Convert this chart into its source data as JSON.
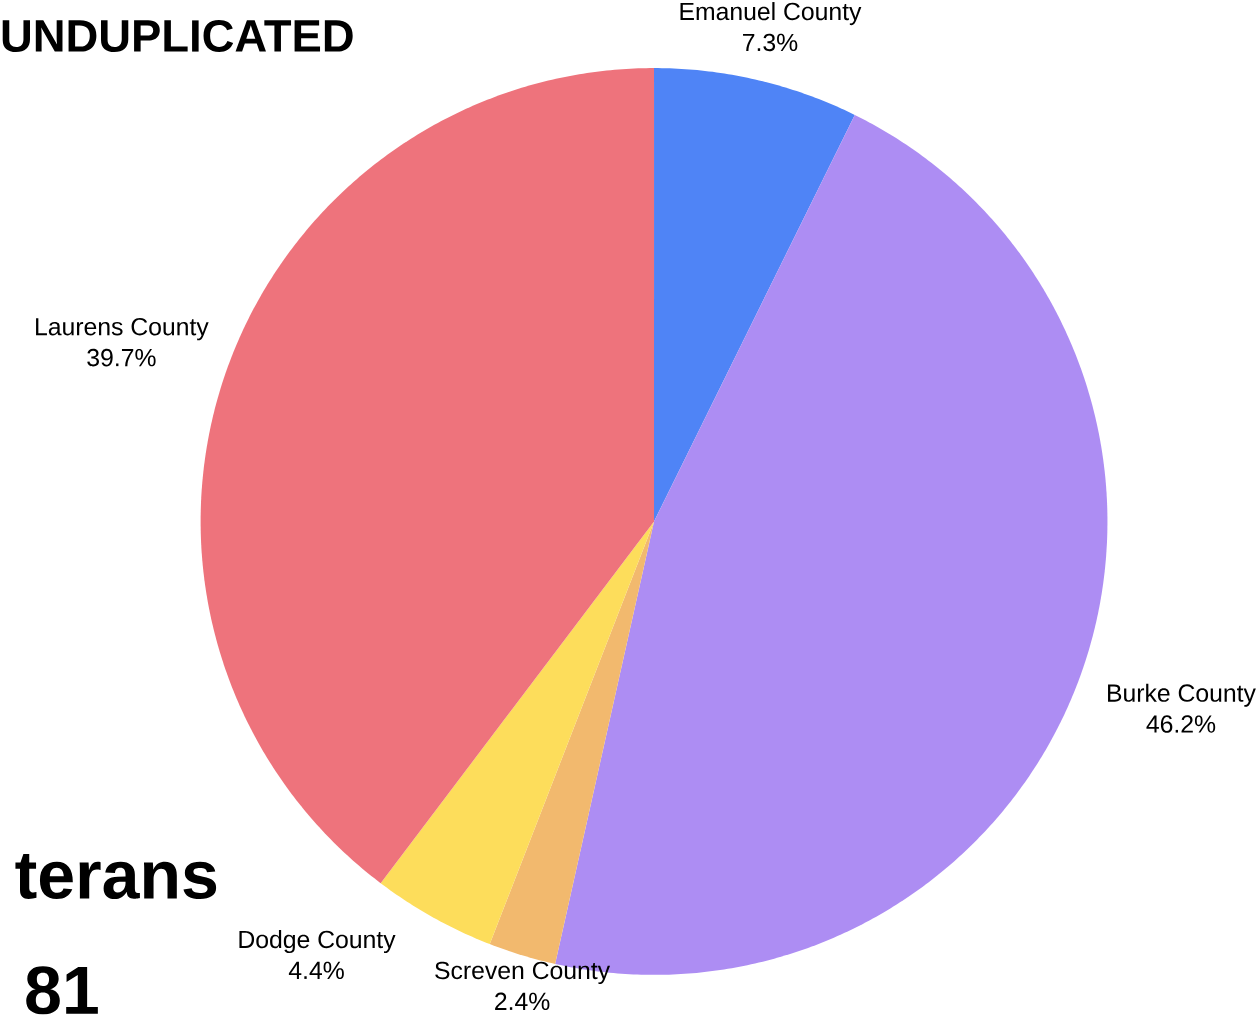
{
  "chart_data": {
    "type": "pie",
    "categories": [
      "Emanuel County",
      "Burke County",
      "Screven County",
      "Dodge County",
      "Laurens County"
    ],
    "values": [
      7.3,
      46.2,
      2.4,
      4.4,
      39.7
    ],
    "colors": [
      "#4f84f6",
      "#ad8df3",
      "#f2b96e",
      "#fddd5b",
      "#ee737c"
    ],
    "value_labels": [
      "7.3%",
      "46.2%",
      "2.4%",
      "4.4%",
      "39.7%"
    ],
    "annotations": [
      "UNDUPLICATED",
      "terans",
      "81"
    ]
  }
}
